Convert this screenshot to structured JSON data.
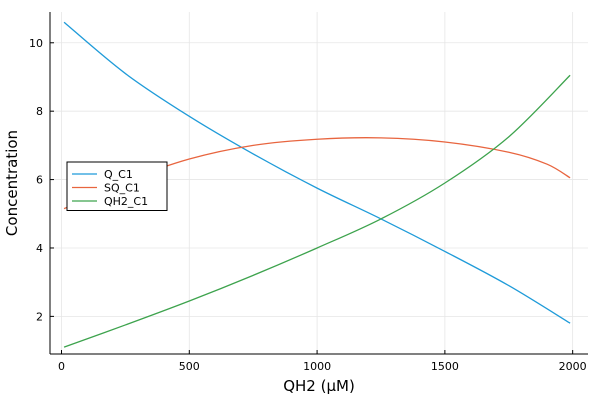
{
  "chart_data": {
    "type": "line",
    "title": "",
    "xlabel": "QH2 (μM)",
    "ylabel": "Concentration",
    "xlim": [
      -45,
      2060
    ],
    "ylim": [
      0.9,
      10.9
    ],
    "xticks": [
      0,
      500,
      1000,
      1500,
      2000
    ],
    "yticks": [
      2,
      4,
      6,
      8,
      10
    ],
    "grid": true,
    "legend_position": "center-left",
    "series": [
      {
        "name": "Q_C1",
        "color": "#1f9bd9",
        "x": [
          10,
          250,
          500,
          750,
          1000,
          1250,
          1500,
          1750,
          1990
        ],
        "y": [
          10.6,
          9.1,
          7.85,
          6.75,
          5.75,
          4.85,
          3.9,
          2.9,
          1.8
        ]
      },
      {
        "name": "SQ_C1",
        "color": "#e8653f",
        "x": [
          10,
          250,
          500,
          750,
          1000,
          1250,
          1500,
          1750,
          1900,
          1990
        ],
        "y": [
          5.15,
          5.95,
          6.6,
          7.0,
          7.18,
          7.22,
          7.1,
          6.8,
          6.45,
          6.05
        ]
      },
      {
        "name": "QH2_C1",
        "color": "#3da34d",
        "x": [
          10,
          250,
          500,
          750,
          1000,
          1250,
          1500,
          1750,
          1990
        ],
        "y": [
          1.1,
          1.75,
          2.45,
          3.2,
          4.0,
          4.85,
          5.9,
          7.25,
          9.05
        ]
      }
    ]
  }
}
